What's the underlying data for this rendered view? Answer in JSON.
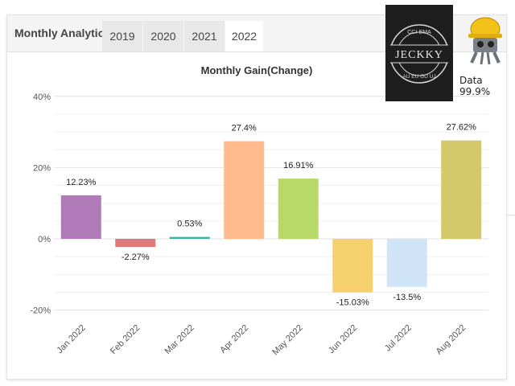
{
  "tabs": {
    "title": "Monthly Analytics",
    "years": [
      "2019",
      "2020",
      "2021",
      "2022"
    ],
    "active": "2022"
  },
  "overlay": {
    "logo_text": "JECKKY",
    "logo_ring_top": "CCI-EMA",
    "logo_ring_bottom": "AU EU GU UJ",
    "caption": "Data 99.9%",
    "mascot_icon": "robot-hardhat-mascot-icon"
  },
  "colors": {
    "jan": "#b07ab8",
    "feb": "#e07a7a",
    "mar": "#37b3a3",
    "apr": "#ffbb8e",
    "may": "#b6d96a",
    "jun": "#f7d06e",
    "jul": "#cfe4f7",
    "aug": "#d4c96a"
  },
  "chart_data": {
    "type": "bar",
    "title": "Monthly Gain(Change)",
    "categories": [
      "Jan 2022",
      "Feb 2022",
      "Mar 2022",
      "Apr 2022",
      "May 2022",
      "Jun 2022",
      "Jul 2022",
      "Aug 2022"
    ],
    "values": [
      12.23,
      -2.27,
      0.53,
      27.4,
      16.91,
      -15.03,
      -13.5,
      27.62
    ],
    "data_labels": [
      "12.23%",
      "-2.27%",
      "0.53%",
      "27.4%",
      "16.91%",
      "-15.03%",
      "-13.5%",
      "27.62%"
    ],
    "yticks": [
      40,
      20,
      0,
      -20
    ],
    "ytick_labels": [
      "40%",
      "20%",
      "0%",
      "-20%"
    ],
    "ylim": [
      -20,
      40
    ],
    "grid": true,
    "xlabel": "",
    "ylabel": ""
  }
}
